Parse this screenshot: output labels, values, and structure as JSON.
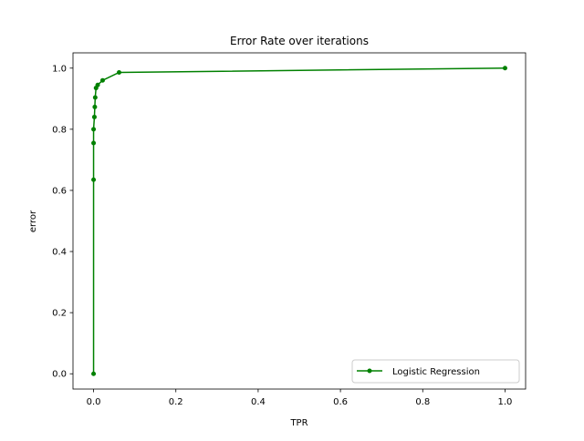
{
  "chart_data": {
    "type": "line",
    "title": "Error Rate over iterations",
    "xlabel": "TPR",
    "ylabel": "error",
    "xlim": [
      -0.05,
      1.05
    ],
    "ylim": [
      -0.05,
      1.05
    ],
    "x_ticks": [
      "0.0",
      "0.2",
      "0.4",
      "0.6",
      "0.8",
      "1.0"
    ],
    "x_tick_values": [
      0,
      0.2,
      0.4,
      0.6,
      0.8,
      1.0
    ],
    "y_ticks": [
      "0.0",
      "0.2",
      "0.4",
      "0.6",
      "0.8",
      "1.0"
    ],
    "y_tick_values": [
      0,
      0.2,
      0.4,
      0.6,
      0.8,
      1.0
    ],
    "grid": false,
    "legend_position": "lower-right",
    "series": [
      {
        "name": "Logistic Regression",
        "color": "#008000",
        "marker": "circle",
        "x": [
          0.0,
          0.0,
          0.0,
          0.0,
          0.002,
          0.003,
          0.004,
          0.006,
          0.01,
          0.022,
          0.062,
          1.0
        ],
        "y": [
          0.0,
          0.635,
          0.755,
          0.8,
          0.84,
          0.873,
          0.904,
          0.935,
          0.945,
          0.96,
          0.986,
          1.0
        ]
      }
    ]
  }
}
